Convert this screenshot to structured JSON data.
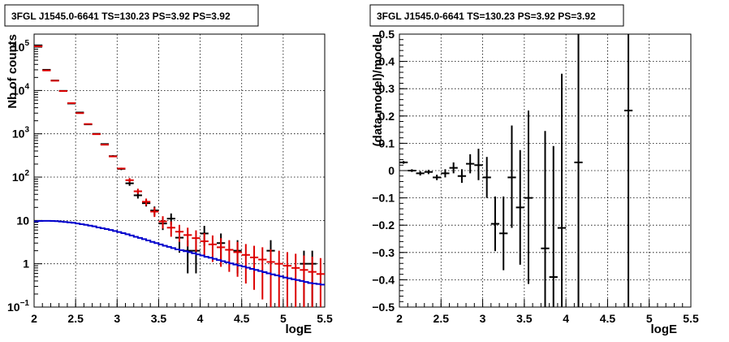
{
  "chart_data": [
    {
      "type": "scatter",
      "title": "3FGL J1545.0-6641 TS=130.23 PS=3.92 PS=3.92",
      "xlabel": "logE",
      "ylabel": "Nb of counts",
      "yscale": "log",
      "xlim": [
        2,
        5.5
      ],
      "ylim": [
        0.1,
        200000
      ],
      "x_ticks": [
        "2",
        "2.5",
        "3",
        "3.5",
        "4",
        "4.5",
        "5",
        "5.5"
      ],
      "y_ticks": [
        {
          "value": 0.1,
          "base": "10",
          "exp": "−1"
        },
        {
          "value": 1,
          "base": "1",
          "exp": ""
        },
        {
          "value": 10,
          "base": "10",
          "exp": ""
        },
        {
          "value": 100,
          "base": "10",
          "exp": "2"
        },
        {
          "value": 1000,
          "base": "10",
          "exp": "3"
        },
        {
          "value": 10000,
          "base": "10",
          "exp": "4"
        },
        {
          "value": 100000,
          "base": "10",
          "exp": "5"
        }
      ],
      "grid": true,
      "colors": {
        "data": "#000000",
        "model": "#dd0000",
        "source": "#0000cc"
      },
      "series": [
        {
          "role": "data",
          "points": [
            {
              "x": 2.05,
              "y": 110000,
              "lo": 110000,
              "hi": 110000
            },
            {
              "x": 2.15,
              "y": 30000,
              "lo": 30000,
              "hi": 30000
            },
            {
              "x": 2.25,
              "y": 17000,
              "lo": 17000,
              "hi": 17000
            },
            {
              "x": 2.35,
              "y": 9800,
              "lo": 9800,
              "hi": 9800
            },
            {
              "x": 2.45,
              "y": 5000,
              "lo": 5000,
              "hi": 5000
            },
            {
              "x": 2.55,
              "y": 3100,
              "lo": 3100,
              "hi": 3100
            },
            {
              "x": 2.65,
              "y": 1650,
              "lo": 1650,
              "hi": 1650
            },
            {
              "x": 2.75,
              "y": 1000,
              "lo": 1000,
              "hi": 1000
            },
            {
              "x": 2.85,
              "y": 580,
              "lo": 580,
              "hi": 580
            },
            {
              "x": 2.95,
              "y": 305,
              "lo": 290,
              "hi": 320
            },
            {
              "x": 3.05,
              "y": 155,
              "lo": 145,
              "hi": 165
            },
            {
              "x": 3.15,
              "y": 72,
              "lo": 63,
              "hi": 82
            },
            {
              "x": 3.25,
              "y": 38,
              "lo": 32,
              "hi": 45
            },
            {
              "x": 3.35,
              "y": 25,
              "lo": 21,
              "hi": 30
            },
            {
              "x": 3.45,
              "y": 17,
              "lo": 13,
              "hi": 21
            },
            {
              "x": 3.55,
              "y": 8.5,
              "lo": 6,
              "hi": 11
            },
            {
              "x": 3.65,
              "y": 11,
              "lo": 8,
              "hi": 14.5
            },
            {
              "x": 3.75,
              "y": 4,
              "lo": 1.8,
              "hi": 6.5
            },
            {
              "x": 3.85,
              "y": 2,
              "lo": 0.6,
              "hi": 3.5
            },
            {
              "x": 3.95,
              "y": 2,
              "lo": 0.6,
              "hi": 3.5
            },
            {
              "x": 4.05,
              "y": 5,
              "lo": 2.6,
              "hi": 7.5
            },
            {
              "x": 4.25,
              "y": 3,
              "lo": 1.2,
              "hi": 5
            },
            {
              "x": 4.45,
              "y": 2,
              "lo": 0.6,
              "hi": 3.5
            },
            {
              "x": 4.85,
              "y": 2,
              "lo": 0.6,
              "hi": 3.5
            },
            {
              "x": 5.25,
              "y": 1,
              "lo": 0.1,
              "hi": 2
            },
            {
              "x": 5.35,
              "y": 1,
              "lo": 0.1,
              "hi": 2
            }
          ]
        },
        {
          "role": "model",
          "points": [
            {
              "x": 2.05,
              "y": 105000
            },
            {
              "x": 2.15,
              "y": 29000
            },
            {
              "x": 2.25,
              "y": 16800
            },
            {
              "x": 2.35,
              "y": 9700
            },
            {
              "x": 2.45,
              "y": 5100
            },
            {
              "x": 2.55,
              "y": 3000
            },
            {
              "x": 2.65,
              "y": 1680
            },
            {
              "x": 2.75,
              "y": 980
            },
            {
              "x": 2.85,
              "y": 560
            },
            {
              "x": 2.95,
              "y": 300
            },
            {
              "x": 3.05,
              "y": 158
            },
            {
              "x": 3.15,
              "y": 85,
              "lo": 76,
              "hi": 95
            },
            {
              "x": 3.25,
              "y": 47,
              "lo": 41,
              "hi": 54
            },
            {
              "x": 3.35,
              "y": 27,
              "lo": 22,
              "hi": 32
            },
            {
              "x": 3.45,
              "y": 16,
              "lo": 12,
              "hi": 20
            },
            {
              "x": 3.55,
              "y": 9.5,
              "lo": 6.5,
              "hi": 12.5
            },
            {
              "x": 3.65,
              "y": 6.8,
              "lo": 4.2,
              "hi": 9.5
            },
            {
              "x": 3.75,
              "y": 5.5,
              "lo": 3.2,
              "hi": 7.9
            },
            {
              "x": 3.85,
              "y": 4.6,
              "lo": 2.5,
              "hi": 6.8
            },
            {
              "x": 3.95,
              "y": 3.9,
              "lo": 1.9,
              "hi": 5.9
            },
            {
              "x": 4.05,
              "y": 3.3,
              "lo": 1.5,
              "hi": 5.1
            },
            {
              "x": 4.15,
              "y": 2.8,
              "lo": 1.1,
              "hi": 4.5
            },
            {
              "x": 4.25,
              "y": 2.4,
              "lo": 0.85,
              "hi": 3.9
            },
            {
              "x": 4.35,
              "y": 2.1,
              "lo": 0.65,
              "hi": 3.5
            },
            {
              "x": 4.45,
              "y": 1.85,
              "lo": 0.5,
              "hi": 3.2
            },
            {
              "x": 4.55,
              "y": 1.6,
              "lo": 0.35,
              "hi": 2.85
            },
            {
              "x": 4.65,
              "y": 1.4,
              "lo": 0.25,
              "hi": 2.6
            },
            {
              "x": 4.75,
              "y": 1.25,
              "lo": 0.15,
              "hi": 2.4
            },
            {
              "x": 4.85,
              "y": 1.1,
              "lo": 0.1,
              "hi": 2.15
            },
            {
              "x": 4.95,
              "y": 1.0,
              "lo": 0.1,
              "hi": 2.0
            },
            {
              "x": 5.05,
              "y": 0.9,
              "lo": 0.1,
              "hi": 1.85
            },
            {
              "x": 5.15,
              "y": 0.8,
              "lo": 0.1,
              "hi": 1.7
            },
            {
              "x": 5.25,
              "y": 0.72,
              "lo": 0.1,
              "hi": 1.55
            },
            {
              "x": 5.35,
              "y": 0.65,
              "lo": 0.1,
              "hi": 1.45
            },
            {
              "x": 5.45,
              "y": 0.58,
              "lo": 0.1,
              "hi": 1.35
            }
          ]
        },
        {
          "role": "source",
          "step": true,
          "bin_width": 0.05,
          "points": [
            {
              "x": 2.0,
              "y": 9.5
            },
            {
              "x": 2.05,
              "y": 9.7
            },
            {
              "x": 2.1,
              "y": 9.8
            },
            {
              "x": 2.15,
              "y": 9.8
            },
            {
              "x": 2.2,
              "y": 9.7
            },
            {
              "x": 2.25,
              "y": 9.6
            },
            {
              "x": 2.3,
              "y": 9.4
            },
            {
              "x": 2.35,
              "y": 9.2
            },
            {
              "x": 2.4,
              "y": 9.0
            },
            {
              "x": 2.45,
              "y": 8.8
            },
            {
              "x": 2.5,
              "y": 8.5
            },
            {
              "x": 2.55,
              "y": 8.2
            },
            {
              "x": 2.6,
              "y": 7.9
            },
            {
              "x": 2.65,
              "y": 7.6
            },
            {
              "x": 2.7,
              "y": 7.3
            },
            {
              "x": 2.75,
              "y": 6.9
            },
            {
              "x": 2.8,
              "y": 6.6
            },
            {
              "x": 2.85,
              "y": 6.3
            },
            {
              "x": 2.9,
              "y": 6.0
            },
            {
              "x": 2.95,
              "y": 5.7
            },
            {
              "x": 3.0,
              "y": 5.4
            },
            {
              "x": 3.05,
              "y": 5.1
            },
            {
              "x": 3.1,
              "y": 4.8
            },
            {
              "x": 3.15,
              "y": 4.5
            },
            {
              "x": 3.2,
              "y": 4.2
            },
            {
              "x": 3.25,
              "y": 3.95
            },
            {
              "x": 3.3,
              "y": 3.7
            },
            {
              "x": 3.35,
              "y": 3.45
            },
            {
              "x": 3.4,
              "y": 3.2
            },
            {
              "x": 3.45,
              "y": 3.0
            },
            {
              "x": 3.5,
              "y": 2.8
            },
            {
              "x": 3.55,
              "y": 2.6
            },
            {
              "x": 3.6,
              "y": 2.45
            },
            {
              "x": 3.65,
              "y": 2.3
            },
            {
              "x": 3.7,
              "y": 2.15
            },
            {
              "x": 3.75,
              "y": 2.05
            },
            {
              "x": 3.8,
              "y": 1.95
            },
            {
              "x": 3.85,
              "y": 1.85
            },
            {
              "x": 3.9,
              "y": 1.75
            },
            {
              "x": 3.95,
              "y": 1.65
            },
            {
              "x": 4.0,
              "y": 1.55
            },
            {
              "x": 4.05,
              "y": 1.45
            },
            {
              "x": 4.1,
              "y": 1.38
            },
            {
              "x": 4.15,
              "y": 1.3
            },
            {
              "x": 4.2,
              "y": 1.22
            },
            {
              "x": 4.25,
              "y": 1.15
            },
            {
              "x": 4.3,
              "y": 1.08
            },
            {
              "x": 4.35,
              "y": 1.02
            },
            {
              "x": 4.4,
              "y": 0.96
            },
            {
              "x": 4.45,
              "y": 0.91
            },
            {
              "x": 4.5,
              "y": 0.86
            },
            {
              "x": 4.55,
              "y": 0.81
            },
            {
              "x": 4.6,
              "y": 0.76
            },
            {
              "x": 4.65,
              "y": 0.72
            },
            {
              "x": 4.7,
              "y": 0.68
            },
            {
              "x": 4.75,
              "y": 0.64
            },
            {
              "x": 4.8,
              "y": 0.6
            },
            {
              "x": 4.85,
              "y": 0.57
            },
            {
              "x": 4.9,
              "y": 0.54
            },
            {
              "x": 4.95,
              "y": 0.51
            },
            {
              "x": 5.0,
              "y": 0.48
            },
            {
              "x": 5.05,
              "y": 0.46
            },
            {
              "x": 5.1,
              "y": 0.44
            },
            {
              "x": 5.15,
              "y": 0.42
            },
            {
              "x": 5.2,
              "y": 0.4
            },
            {
              "x": 5.25,
              "y": 0.38
            },
            {
              "x": 5.3,
              "y": 0.36
            },
            {
              "x": 5.35,
              "y": 0.35
            },
            {
              "x": 5.4,
              "y": 0.34
            },
            {
              "x": 5.45,
              "y": 0.33
            }
          ]
        }
      ]
    },
    {
      "type": "scatter",
      "title": "3FGL J1545.0-6641 TS=130.23 PS=3.92 PS=3.92",
      "xlabel": "logE",
      "ylabel": "(data-model)/model",
      "yscale": "linear",
      "xlim": [
        2,
        5.5
      ],
      "ylim": [
        -0.5,
        0.5
      ],
      "x_ticks": [
        "2",
        "2.5",
        "3",
        "3.5",
        "4",
        "4.5",
        "5",
        "5.5"
      ],
      "y_ticks": [
        "−0.5",
        "−0.4",
        "−0.3",
        "−0.2",
        "−0.1",
        "0",
        "0.1",
        "0.2",
        "0.3",
        "0.4",
        "0.5"
      ],
      "grid": true,
      "colors": {
        "data": "#000000"
      },
      "series": [
        {
          "role": "residual",
          "points": [
            {
              "x": 2.05,
              "y": 0.03,
              "lo": 0.025,
              "hi": 0.035
            },
            {
              "x": 2.15,
              "y": 0.0,
              "lo": -0.005,
              "hi": 0.005
            },
            {
              "x": 2.25,
              "y": -0.01,
              "lo": -0.018,
              "hi": -0.002
            },
            {
              "x": 2.35,
              "y": -0.005,
              "lo": -0.013,
              "hi": 0.003
            },
            {
              "x": 2.45,
              "y": -0.025,
              "lo": -0.035,
              "hi": -0.015
            },
            {
              "x": 2.55,
              "y": -0.01,
              "lo": -0.025,
              "hi": 0.005
            },
            {
              "x": 2.65,
              "y": 0.01,
              "lo": -0.01,
              "hi": 0.03
            },
            {
              "x": 2.75,
              "y": -0.02,
              "lo": -0.045,
              "hi": 0.005
            },
            {
              "x": 2.85,
              "y": 0.025,
              "lo": -0.01,
              "hi": 0.06
            },
            {
              "x": 2.95,
              "y": 0.02,
              "lo": -0.035,
              "hi": 0.08
            },
            {
              "x": 3.05,
              "y": -0.025,
              "lo": -0.1,
              "hi": 0.05
            },
            {
              "x": 3.15,
              "y": -0.195,
              "lo": -0.295,
              "hi": -0.095
            },
            {
              "x": 3.25,
              "y": -0.23,
              "lo": -0.365,
              "hi": -0.095
            },
            {
              "x": 3.35,
              "y": -0.025,
              "lo": -0.21,
              "hi": 0.165
            },
            {
              "x": 3.45,
              "y": -0.135,
              "lo": -0.345,
              "hi": 0.075
            },
            {
              "x": 3.55,
              "y": -0.1,
              "lo": -0.415,
              "hi": 0.22
            },
            {
              "x": 3.75,
              "y": -0.285,
              "lo": -0.5,
              "hi": 0.145
            },
            {
              "x": 3.85,
              "y": -0.39,
              "lo": -0.5,
              "hi": 0.09
            },
            {
              "x": 3.95,
              "y": -0.21,
              "lo": -0.5,
              "hi": 0.355
            },
            {
              "x": 4.15,
              "y": 0.03,
              "lo": -0.5,
              "hi": 0.5
            },
            {
              "x": 4.75,
              "y": 0.22,
              "lo": -0.5,
              "hi": 0.5
            }
          ]
        }
      ]
    }
  ]
}
